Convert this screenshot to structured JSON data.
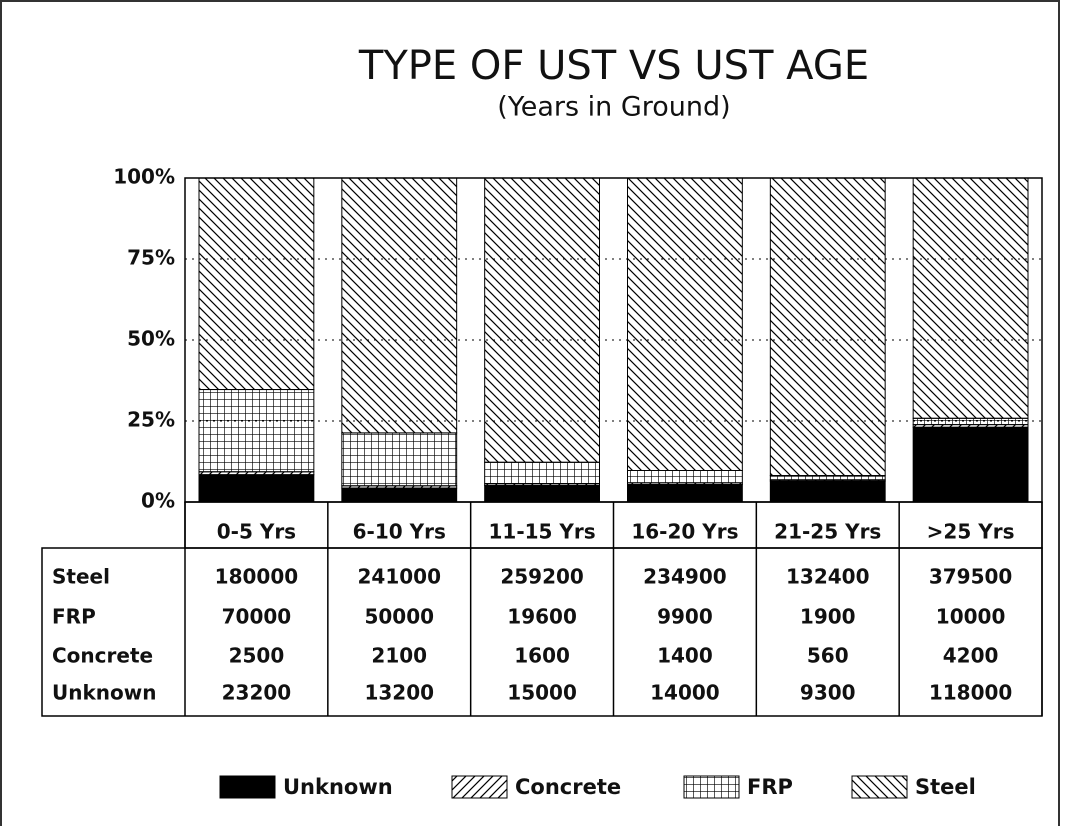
{
  "chart_data": {
    "type": "stacked-bar-100",
    "title": "TYPE OF UST VS UST AGE",
    "subtitle": "(Years in Ground)",
    "categories": [
      "0-5 Yrs",
      "6-10 Yrs",
      "11-15 Yrs",
      "16-20 Yrs",
      "21-25 Yrs",
      ">25 Yrs"
    ],
    "series": [
      {
        "name": "Unknown",
        "color": "#000000",
        "pattern": "solid",
        "values": [
          23200,
          13200,
          15000,
          14000,
          9300,
          118000
        ]
      },
      {
        "name": "Concrete",
        "color": "#000000",
        "pattern": "diagonal",
        "values": [
          2500,
          2100,
          1600,
          1400,
          560,
          4200
        ]
      },
      {
        "name": "FRP",
        "color": "#000000",
        "pattern": "grid",
        "values": [
          70000,
          50000,
          19600,
          9900,
          1900,
          10000
        ]
      },
      {
        "name": "Steel",
        "color": "#000000",
        "pattern": "backdiagonal",
        "values": [
          180000,
          241000,
          259200,
          234900,
          132400,
          379500
        ]
      }
    ],
    "ylim": [
      0,
      100
    ],
    "yticks": [
      {
        "value": 0,
        "label": "0%"
      },
      {
        "value": 25,
        "label": "25%"
      },
      {
        "value": 50,
        "label": "50%"
      },
      {
        "value": 75,
        "label": "75%"
      },
      {
        "value": 100,
        "label": "100%"
      }
    ],
    "grid": true
  }
}
